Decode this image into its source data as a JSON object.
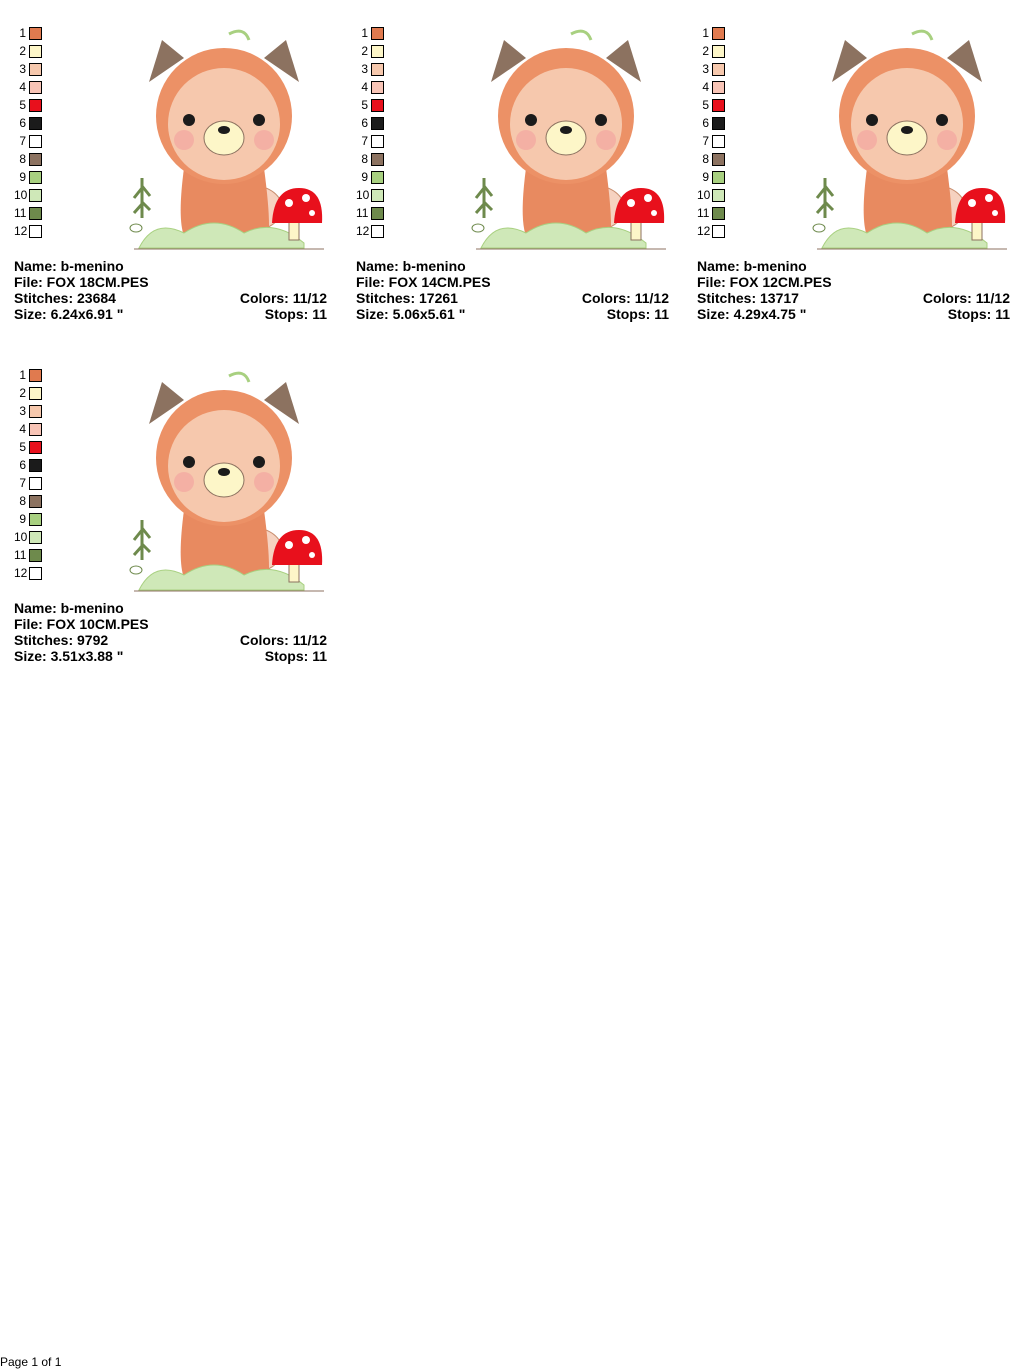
{
  "palette": [
    {
      "number": 1,
      "color": "#e07a4f"
    },
    {
      "number": 2,
      "color": "#fdf6c8"
    },
    {
      "number": 3,
      "color": "#f6c8ad"
    },
    {
      "number": 4,
      "color": "#f8c4b6"
    },
    {
      "number": 5,
      "color": "#e8101c"
    },
    {
      "number": 6,
      "color": "#1b1b1b"
    },
    {
      "number": 7,
      "color": "#ffffff"
    },
    {
      "number": 8,
      "color": "#8c7260"
    },
    {
      "number": 9,
      "color": "#a8d080"
    },
    {
      "number": 10,
      "color": "#cfe8b8"
    },
    {
      "number": 11,
      "color": "#6e8a4c"
    },
    {
      "number": 12,
      "color": "#ffffff"
    }
  ],
  "designs": [
    {
      "name": "Name: b-menino",
      "file": "File: FOX 18CM.PES",
      "stitches": "Stitches: 23684",
      "colors": "Colors: 11/12",
      "size": "Size: 6.24x6.91 \"",
      "stops": "Stops: 11"
    },
    {
      "name": "Name: b-menino",
      "file": "File: FOX 14CM.PES",
      "stitches": "Stitches: 17261",
      "colors": "Colors: 11/12",
      "size": "Size: 5.06x5.61 \"",
      "stops": "Stops: 11"
    },
    {
      "name": "Name: b-menino",
      "file": "File: FOX 12CM.PES",
      "stitches": "Stitches: 13717",
      "colors": "Colors: 11/12",
      "size": "Size: 4.29x4.75 \"",
      "stops": "Stops: 11"
    },
    {
      "name": "Name: b-menino",
      "file": "File: FOX 10CM.PES",
      "stitches": "Stitches: 9792",
      "colors": "Colors: 11/12",
      "size": "Size: 3.51x3.88 \"",
      "stops": "Stops: 11"
    }
  ],
  "footer": "Page 1 of 1"
}
